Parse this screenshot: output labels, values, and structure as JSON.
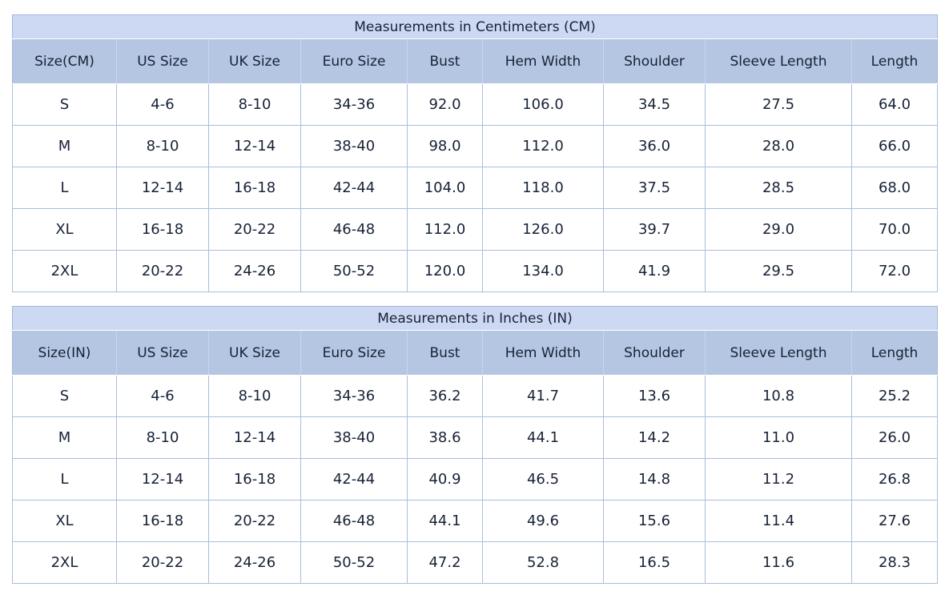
{
  "colors": {
    "page_bg": "#ffffff",
    "title_bg": "#cdd9f2",
    "header_bg": "#b4c6e2",
    "outer_border": "#a3b8d8",
    "inner_border": "#a9bedd",
    "header_divider": "#c9d6ec",
    "text_color": "#172236"
  },
  "tables": [
    {
      "title": "Measurements in Centimeters (CM)",
      "columns": [
        "Size(CM)",
        "US Size",
        "UK Size",
        "Euro Size",
        "Bust",
        "Hem Width",
        "Shoulder",
        "Sleeve Length",
        "Length"
      ],
      "rows": [
        [
          "S",
          "4-6",
          "8-10",
          "34-36",
          "92.0",
          "106.0",
          "34.5",
          "27.5",
          "64.0"
        ],
        [
          "M",
          "8-10",
          "12-14",
          "38-40",
          "98.0",
          "112.0",
          "36.0",
          "28.0",
          "66.0"
        ],
        [
          "L",
          "12-14",
          "16-18",
          "42-44",
          "104.0",
          "118.0",
          "37.5",
          "28.5",
          "68.0"
        ],
        [
          "XL",
          "16-18",
          "20-22",
          "46-48",
          "112.0",
          "126.0",
          "39.7",
          "29.0",
          "70.0"
        ],
        [
          "2XL",
          "20-22",
          "24-26",
          "50-52",
          "120.0",
          "134.0",
          "41.9",
          "29.5",
          "72.0"
        ]
      ]
    },
    {
      "title": "Measurements in Inches (IN)",
      "columns": [
        "Size(IN)",
        "US Size",
        "UK Size",
        "Euro Size",
        "Bust",
        "Hem Width",
        "Shoulder",
        "Sleeve Length",
        "Length"
      ],
      "rows": [
        [
          "S",
          "4-6",
          "8-10",
          "34-36",
          "36.2",
          "41.7",
          "13.6",
          "10.8",
          "25.2"
        ],
        [
          "M",
          "8-10",
          "12-14",
          "38-40",
          "38.6",
          "44.1",
          "14.2",
          "11.0",
          "26.0"
        ],
        [
          "L",
          "12-14",
          "16-18",
          "42-44",
          "40.9",
          "46.5",
          "14.8",
          "11.2",
          "26.8"
        ],
        [
          "XL",
          "16-18",
          "20-22",
          "46-48",
          "44.1",
          "49.6",
          "15.6",
          "11.4",
          "27.6"
        ],
        [
          "2XL",
          "20-22",
          "24-26",
          "50-52",
          "47.2",
          "52.8",
          "16.5",
          "11.6",
          "28.3"
        ]
      ]
    }
  ]
}
